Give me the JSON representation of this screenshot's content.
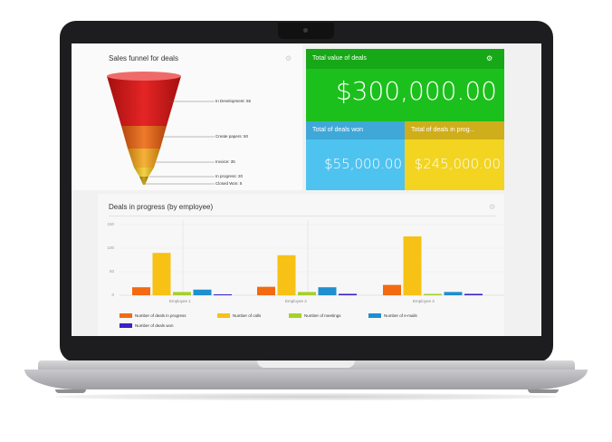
{
  "funnel": {
    "title": "Sales funnel for deals",
    "stages": [
      {
        "label": "In Development: 65",
        "color": "#d81f1f"
      },
      {
        "label": "Create papers: 50",
        "color": "#e8641e"
      },
      {
        "label": "Invoice: 35",
        "color": "#f0a21e"
      },
      {
        "label": "In progress: 20",
        "color": "#f2c21e"
      },
      {
        "label": "Closed Won: 5",
        "color": "#b8960c"
      }
    ]
  },
  "totals": {
    "total_value": {
      "title": "Total value of deals",
      "value": "$300,000.00",
      "color": "#1cc01c",
      "header_color": "#17a817"
    },
    "won": {
      "title": "Total of deals won",
      "value": "$55,000.00",
      "color": "#4fc3f0",
      "header_color": "#3fa8d8"
    },
    "in_progress": {
      "title": "Total of deals in prog...",
      "value": "$245,000.00",
      "color": "#f2d421",
      "header_color": "#cfae1b"
    }
  },
  "deals_chart": {
    "title": "Deals in progress (by employee)"
  },
  "chart_data": {
    "type": "bar",
    "title": "Deals in progress (by employee)",
    "categories": [
      "Employee 1",
      "Employee 2",
      "Employee 3"
    ],
    "ylim": [
      0,
      150
    ],
    "yticks": [
      "150",
      "100",
      "50",
      "0"
    ],
    "series": [
      {
        "name": "Number of deals in progress",
        "color": "#f36a12",
        "values": [
          17,
          18,
          22
        ]
      },
      {
        "name": "Number of calls",
        "color": "#f7c215",
        "values": [
          90,
          85,
          125
        ]
      },
      {
        "name": "Number of meetings",
        "color": "#a6d12a",
        "values": [
          7,
          7,
          3
        ]
      },
      {
        "name": "Number of e-mails",
        "color": "#1f8fd0",
        "values": [
          12,
          17,
          7
        ]
      },
      {
        "name": "Number of deals won",
        "color": "#3a22c8",
        "values": [
          2,
          3,
          3
        ]
      }
    ]
  }
}
